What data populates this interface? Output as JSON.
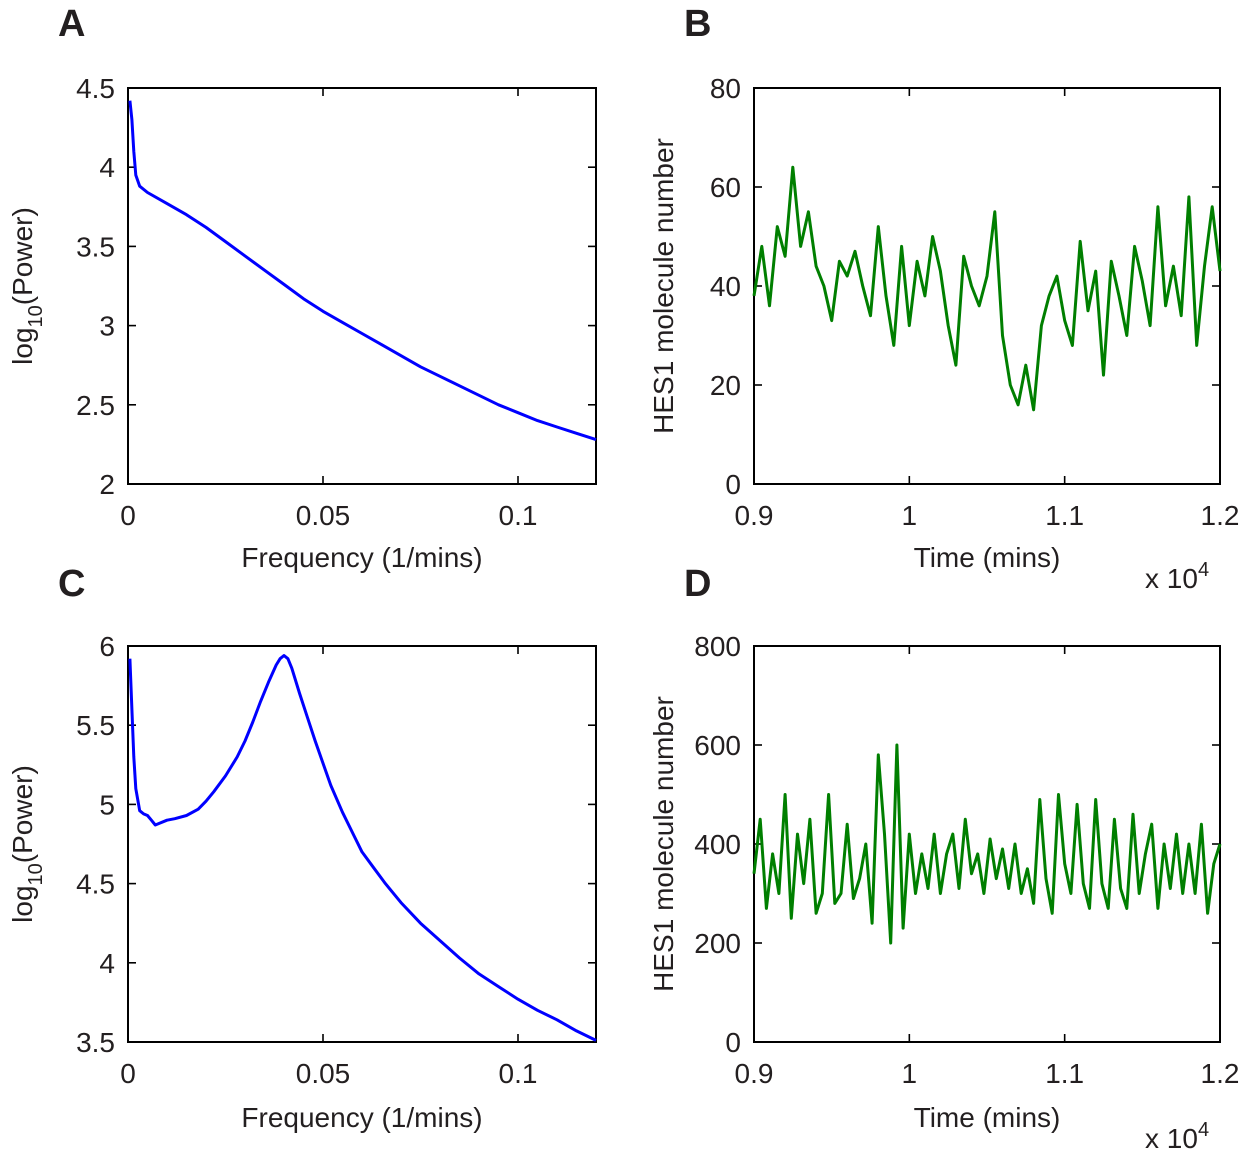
{
  "chart_data": [
    {
      "panel": "A",
      "type": "line",
      "title": "",
      "xlabel": "Frequency (1/mins)",
      "ylabel": "log",
      "ylabel_sub": "10",
      "ylabel_suffix": "(Power)",
      "xlim": [
        0,
        0.12
      ],
      "ylim": [
        2,
        4.5
      ],
      "xticks": [
        0,
        0.05,
        0.1
      ],
      "xtick_labels": [
        "0",
        "0.05",
        "0.1"
      ],
      "yticks": [
        2,
        2.5,
        3,
        3.5,
        4,
        4.5
      ],
      "ytick_labels": [
        "2",
        "2.5",
        "3",
        "3.5",
        "4",
        "4.5"
      ],
      "x_multiplier": "",
      "grid": false,
      "color": "#0000ff",
      "series": [
        {
          "x": [
            0.0005,
            0.001,
            0.0015,
            0.002,
            0.003,
            0.005,
            0.01,
            0.015,
            0.02,
            0.025,
            0.03,
            0.035,
            0.04,
            0.045,
            0.05,
            0.055,
            0.06,
            0.065,
            0.07,
            0.075,
            0.08,
            0.085,
            0.09,
            0.095,
            0.1,
            0.105,
            0.11,
            0.115,
            0.12
          ],
          "values": [
            4.42,
            4.3,
            4.1,
            3.95,
            3.88,
            3.84,
            3.77,
            3.7,
            3.62,
            3.53,
            3.44,
            3.35,
            3.26,
            3.17,
            3.09,
            3.02,
            2.95,
            2.88,
            2.81,
            2.74,
            2.68,
            2.62,
            2.56,
            2.5,
            2.45,
            2.4,
            2.36,
            2.32,
            2.28
          ]
        }
      ]
    },
    {
      "panel": "B",
      "type": "line",
      "title": "",
      "xlabel": "Time (mins)",
      "ylabel": "HES1 molecule number",
      "xlim": [
        9000,
        12000
      ],
      "ylim": [
        0,
        80
      ],
      "xticks": [
        9000,
        10000,
        11000,
        12000
      ],
      "xtick_labels": [
        "0.9",
        "1",
        "1.1",
        "1.2"
      ],
      "yticks": [
        0,
        20,
        40,
        60,
        80
      ],
      "ytick_labels": [
        "0",
        "20",
        "40",
        "60",
        "80"
      ],
      "x_multiplier": "x 10",
      "x_multiplier_exp": "4",
      "grid": false,
      "color": "#007f00",
      "series": [
        {
          "x": [
            9000,
            9050,
            9100,
            9150,
            9200,
            9250,
            9300,
            9350,
            9400,
            9450,
            9500,
            9550,
            9600,
            9650,
            9700,
            9750,
            9800,
            9850,
            9900,
            9950,
            10000,
            10050,
            10100,
            10150,
            10200,
            10250,
            10300,
            10350,
            10400,
            10450,
            10500,
            10550,
            10600,
            10650,
            10700,
            10750,
            10800,
            10850,
            10900,
            10950,
            11000,
            11050,
            11100,
            11150,
            11200,
            11250,
            11300,
            11350,
            11400,
            11450,
            11500,
            11550,
            11600,
            11650,
            11700,
            11750,
            11800,
            11850,
            11900,
            11950,
            12000
          ],
          "values": [
            38,
            48,
            36,
            52,
            46,
            64,
            48,
            55,
            44,
            40,
            33,
            45,
            42,
            47,
            40,
            34,
            52,
            38,
            28,
            48,
            32,
            45,
            38,
            50,
            43,
            32,
            24,
            46,
            40,
            36,
            42,
            55,
            30,
            20,
            16,
            24,
            15,
            32,
            38,
            42,
            33,
            28,
            49,
            35,
            43,
            22,
            45,
            38,
            30,
            48,
            41,
            32,
            56,
            36,
            44,
            34,
            58,
            28,
            44,
            56,
            43
          ]
        }
      ]
    },
    {
      "panel": "C",
      "type": "line",
      "title": "",
      "xlabel": "Frequency (1/mins)",
      "ylabel": "log",
      "ylabel_sub": "10",
      "ylabel_suffix": "(Power)",
      "xlim": [
        0,
        0.12
      ],
      "ylim": [
        3.5,
        6
      ],
      "xticks": [
        0,
        0.05,
        0.1
      ],
      "xtick_labels": [
        "0",
        "0.05",
        "0.1"
      ],
      "yticks": [
        3.5,
        4,
        4.5,
        5,
        5.5,
        6
      ],
      "ytick_labels": [
        "3.5",
        "4",
        "4.5",
        "5",
        "5.5",
        "6"
      ],
      "x_multiplier": "",
      "grid": false,
      "color": "#0000ff",
      "series": [
        {
          "x": [
            0.0005,
            0.001,
            0.0015,
            0.002,
            0.003,
            0.004,
            0.005,
            0.006,
            0.007,
            0.008,
            0.01,
            0.012,
            0.015,
            0.018,
            0.02,
            0.022,
            0.025,
            0.028,
            0.03,
            0.032,
            0.034,
            0.036,
            0.038,
            0.039,
            0.04,
            0.041,
            0.042,
            0.044,
            0.046,
            0.048,
            0.05,
            0.052,
            0.055,
            0.058,
            0.06,
            0.063,
            0.066,
            0.07,
            0.075,
            0.08,
            0.085,
            0.09,
            0.095,
            0.1,
            0.105,
            0.11,
            0.115,
            0.12
          ],
          "values": [
            5.92,
            5.6,
            5.3,
            5.1,
            4.96,
            4.94,
            4.93,
            4.9,
            4.87,
            4.88,
            4.9,
            4.91,
            4.93,
            4.97,
            5.02,
            5.08,
            5.18,
            5.3,
            5.4,
            5.52,
            5.65,
            5.77,
            5.88,
            5.92,
            5.94,
            5.92,
            5.86,
            5.7,
            5.55,
            5.4,
            5.26,
            5.12,
            4.95,
            4.8,
            4.7,
            4.6,
            4.5,
            4.38,
            4.25,
            4.14,
            4.03,
            3.93,
            3.85,
            3.77,
            3.7,
            3.64,
            3.57,
            3.51
          ]
        }
      ]
    },
    {
      "panel": "D",
      "type": "line",
      "title": "",
      "xlabel": "Time (mins)",
      "ylabel": "HES1 molecule number",
      "xlim": [
        9000,
        12000
      ],
      "ylim": [
        0,
        800
      ],
      "xticks": [
        9000,
        10000,
        11000,
        12000
      ],
      "xtick_labels": [
        "0.9",
        "1",
        "1.1",
        "1.2"
      ],
      "yticks": [
        0,
        200,
        400,
        600,
        800
      ],
      "ytick_labels": [
        "0",
        "200",
        "400",
        "600",
        "800"
      ],
      "x_multiplier": "x 10",
      "x_multiplier_exp": "4",
      "grid": false,
      "color": "#007f00",
      "series": [
        {
          "x": [
            9000,
            9040,
            9080,
            9120,
            9160,
            9200,
            9240,
            9280,
            9320,
            9360,
            9400,
            9440,
            9480,
            9520,
            9560,
            9600,
            9640,
            9680,
            9720,
            9760,
            9800,
            9840,
            9880,
            9920,
            9960,
            10000,
            10040,
            10080,
            10120,
            10160,
            10200,
            10240,
            10280,
            10320,
            10360,
            10400,
            10440,
            10480,
            10520,
            10560,
            10600,
            10640,
            10680,
            10720,
            10760,
            10800,
            10840,
            10880,
            10920,
            10960,
            11000,
            11040,
            11080,
            11120,
            11160,
            11200,
            11240,
            11280,
            11320,
            11360,
            11400,
            11440,
            11480,
            11520,
            11560,
            11600,
            11640,
            11680,
            11720,
            11760,
            11800,
            11840,
            11880,
            11920,
            11960,
            12000
          ],
          "values": [
            340,
            450,
            270,
            380,
            300,
            500,
            250,
            420,
            320,
            450,
            260,
            300,
            500,
            280,
            300,
            440,
            290,
            330,
            400,
            240,
            580,
            420,
            200,
            600,
            230,
            420,
            300,
            380,
            310,
            420,
            300,
            380,
            420,
            310,
            450,
            340,
            380,
            300,
            410,
            330,
            390,
            310,
            400,
            300,
            350,
            280,
            490,
            330,
            260,
            500,
            360,
            300,
            480,
            320,
            270,
            490,
            320,
            270,
            450,
            310,
            270,
            460,
            300,
            380,
            440,
            270,
            400,
            310,
            420,
            300,
            400,
            300,
            440,
            260,
            360,
            400
          ]
        }
      ]
    }
  ]
}
